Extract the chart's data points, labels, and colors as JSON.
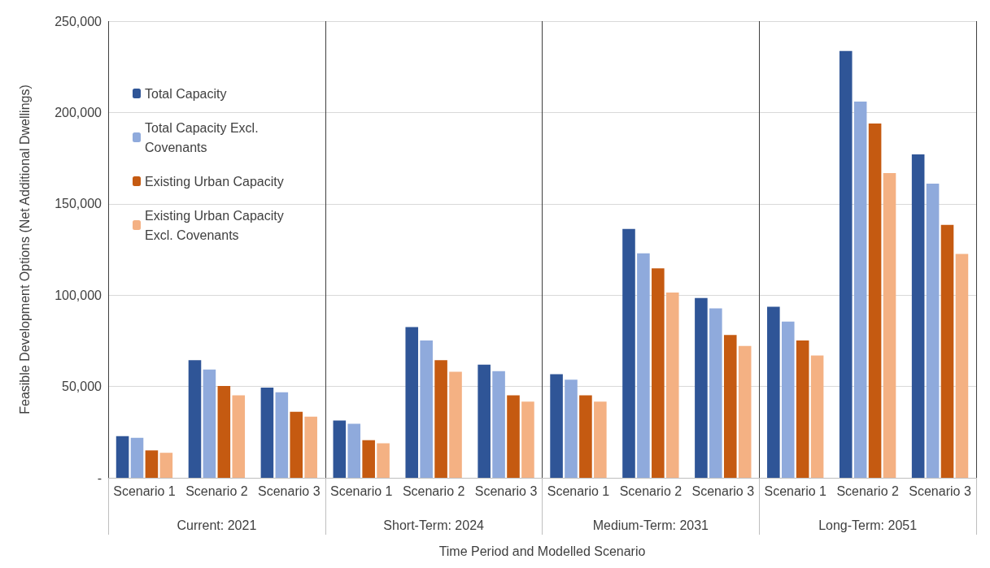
{
  "chart_data": {
    "type": "bar",
    "xlabel": "Time Period and Modelled Scenario",
    "ylabel": "Feasible Development Options (Net Additional Dwellings)",
    "categories": [
      "Scenario 1",
      "Scenario 2",
      "Scenario 3",
      "Scenario 1",
      "Scenario 2",
      "Scenario 3",
      "Scenario 1",
      "Scenario 2",
      "Scenario 3",
      "Scenario 1",
      "Scenario 2",
      "Scenario 3"
    ],
    "annotations": [
      "Current: 2021",
      "Short-Term: 2024",
      "Medium-Term: 2031",
      "Long-Term: 2051"
    ],
    "series": [
      {
        "name": "Total Capacity",
        "color": "#2f5597",
        "values": [
          22800,
          64400,
          49400,
          31400,
          82500,
          61900,
          56700,
          136200,
          98400,
          93600,
          233600,
          177000
        ]
      },
      {
        "name": "Total Capacity Excl. Covenants",
        "color": "#8faadc",
        "values": [
          21900,
          59300,
          46800,
          29600,
          75200,
          58400,
          53700,
          122900,
          92800,
          85500,
          206000,
          161000
        ]
      },
      {
        "name": "Existing Urban Capacity",
        "color": "#c55a11",
        "values": [
          15000,
          50300,
          36100,
          20600,
          64400,
          45100,
          45100,
          114700,
          78200,
          75200,
          194000,
          138500
        ]
      },
      {
        "name": "Existing Urban Capacity Excl. Covenants",
        "color": "#f4b183",
        "values": [
          13700,
          45100,
          33500,
          18900,
          58000,
          41700,
          41700,
          101400,
          72200,
          67000,
          166800,
          122600
        ]
      }
    ],
    "ylim": [
      0,
      250000
    ],
    "yticks": [
      {
        "value": 0,
        "label": "-"
      },
      {
        "value": 50000,
        "label": "50,000"
      },
      {
        "value": 100000,
        "label": "100,000"
      },
      {
        "value": 150000,
        "label": "150,000"
      },
      {
        "value": 200000,
        "label": "200,000"
      },
      {
        "value": 250000,
        "label": "250,000"
      }
    ],
    "grid": "y",
    "legend": "top left"
  }
}
